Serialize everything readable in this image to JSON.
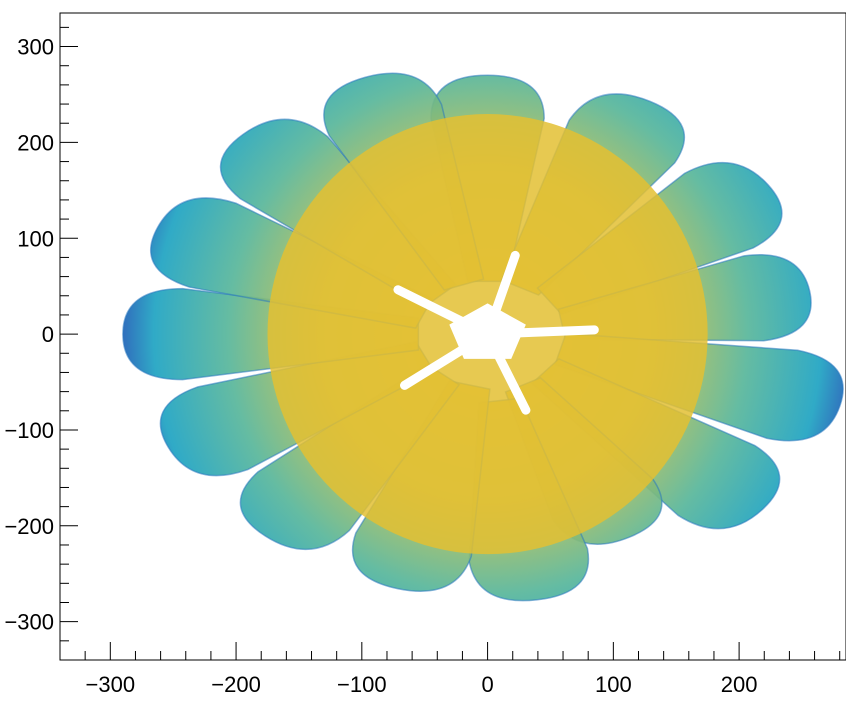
{
  "chart_data": {
    "type": "heatmap",
    "title": "",
    "xlabel": "",
    "ylabel": "",
    "xlim": [
      -340,
      285
    ],
    "ylim": [
      -340,
      335
    ],
    "x_ticks": [
      -300,
      -200,
      -100,
      0,
      100,
      200
    ],
    "y_ticks": [
      300,
      200,
      100,
      0,
      -100,
      -200,
      -300
    ],
    "x_tick_labels": [
      "−300",
      "−200",
      "−100",
      "0",
      "100",
      "200"
    ],
    "y_tick_labels": [
      "300",
      "200",
      "100",
      "0",
      "−100",
      "−200",
      "−300"
    ],
    "colors": {
      "low": "#1f4fb0",
      "mid": "#18a7b8",
      "high": "#f5c02a",
      "frame": "#000000"
    },
    "grid": false,
    "description_of_distribution": "Dense 2D hit map: ~36 rounded, petal-shaped lobes arranged in two rings around a central pentagon-shaped gap with five radial slits; intensity highest (yellow) toward center, lowest (blue) at lobe edges.",
    "lobes": [
      {
        "angle": 90,
        "r_in": 55,
        "r_out": 270,
        "w": 90
      },
      {
        "angle": 62,
        "r_in": 55,
        "r_out": 275,
        "w": 95
      },
      {
        "angle": 35,
        "r_in": 60,
        "r_out": 272,
        "w": 95
      },
      {
        "angle": 10,
        "r_in": 60,
        "r_out": 260,
        "w": 90
      },
      {
        "angle": -15,
        "r_in": 60,
        "r_out": 290,
        "w": 95
      },
      {
        "angle": -40,
        "r_in": 60,
        "r_out": 285,
        "w": 95
      },
      {
        "angle": -62,
        "r_in": 60,
        "r_out": 240,
        "w": 90
      },
      {
        "angle": -82,
        "r_in": 70,
        "r_out": 280,
        "w": 95
      },
      {
        "angle": -105,
        "r_in": 55,
        "r_out": 275,
        "w": 95
      },
      {
        "angle": -130,
        "r_in": 55,
        "r_out": 275,
        "w": 95
      },
      {
        "angle": -155,
        "r_in": 55,
        "r_out": 280,
        "w": 95
      },
      {
        "angle": 180,
        "r_in": 55,
        "r_out": 290,
        "w": 95
      },
      {
        "angle": 157,
        "r_in": 55,
        "r_out": 285,
        "w": 95
      },
      {
        "angle": 133,
        "r_in": 55,
        "r_out": 285,
        "w": 95
      },
      {
        "angle": 110,
        "r_in": 55,
        "r_out": 285,
        "w": 95
      }
    ]
  }
}
